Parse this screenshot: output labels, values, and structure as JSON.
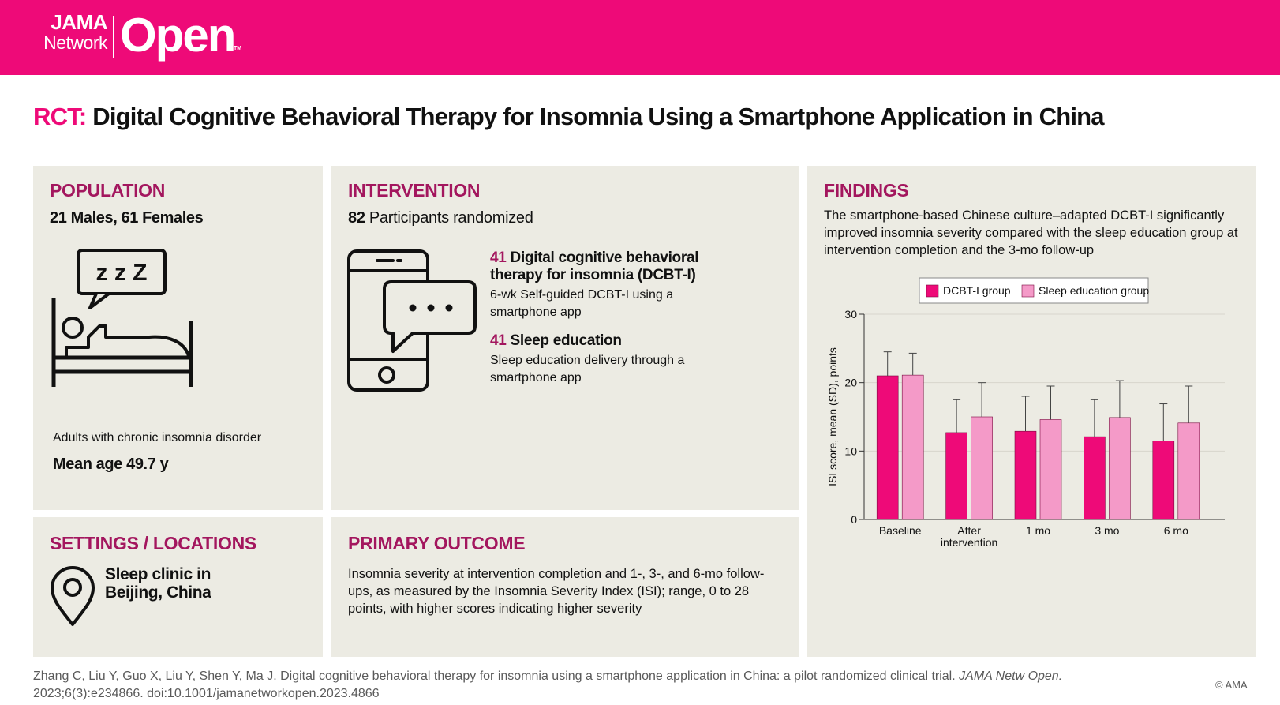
{
  "header": {
    "logo_jama": "JAMA",
    "logo_network": "Network",
    "logo_open": "Open",
    "logo_tm": "TM",
    "brand_color": "#ee0a78"
  },
  "title": {
    "prefix": "RCT:",
    "text": "Digital Cognitive Behavioral Therapy for Insomnia Using a Smartphone Application in China"
  },
  "population": {
    "heading": "POPULATION",
    "sex_line": "21 Males, 61 Females",
    "icon": "bed-sleep-icon",
    "zzz": "z z Z",
    "description": "Adults with chronic insomnia disorder",
    "mean_age": "Mean age 49.7 y"
  },
  "intervention": {
    "heading": "INTERVENTION",
    "randomized_n": "82",
    "randomized_label": "Participants randomized",
    "icon": "smartphone-chat-icon",
    "arm1_n": "41",
    "arm1_title": "Digital cognitive behavioral therapy for insomnia (DCBT-I)",
    "arm1_desc": "6-wk Self-guided DCBT-I using a smartphone app",
    "arm2_n": "41",
    "arm2_title": "Sleep education",
    "arm2_desc": "Sleep education delivery through a smartphone app"
  },
  "settings": {
    "heading": "SETTINGS / LOCATIONS",
    "icon": "location-pin-icon",
    "location_line1": "Sleep clinic in",
    "location_line2": "Beijing, China"
  },
  "primary_outcome": {
    "heading": "PRIMARY OUTCOME",
    "text": "Insomnia severity at intervention completion and 1-, 3-, and 6-mo follow-ups, as measured by the Insomnia Severity Index (ISI); range, 0 to 28 points, with higher scores indicating higher severity"
  },
  "findings": {
    "heading": "FINDINGS",
    "text": "The smartphone-based Chinese culture–adapted DCBT-I significantly improved insomnia severity compared with the sleep education group at intervention completion and the 3-mo follow-up"
  },
  "chart_data": {
    "type": "bar",
    "title": "",
    "xlabel": "",
    "ylabel": "ISI score, mean (SD), points",
    "ylim": [
      0,
      30
    ],
    "yticks": [
      0,
      10,
      20,
      30
    ],
    "grid": true,
    "legend_position": "top-center",
    "categories": [
      "Baseline",
      "After intervention",
      "1 mo",
      "3 mo",
      "6 mo"
    ],
    "series": [
      {
        "name": "DCBT-I group",
        "color": "#ee0a78",
        "values": [
          21.0,
          12.7,
          12.9,
          12.1,
          11.5
        ],
        "sd": [
          3.5,
          4.8,
          5.1,
          5.4,
          5.4
        ]
      },
      {
        "name": "Sleep education group",
        "color": "#f49ac8",
        "values": [
          21.1,
          15.0,
          14.6,
          14.9,
          14.1
        ],
        "sd": [
          3.2,
          5.0,
          4.9,
          5.4,
          5.4
        ]
      }
    ]
  },
  "citation": {
    "line1": "Zhang C, Liu Y, Guo X, Liu Y, Shen Y, Ma J. Digital cognitive behavioral therapy for insomnia using a smartphone application in China: a pilot randomized clinical trial.",
    "journal": "JAMA Netw Open.",
    "line2": "2023;6(3):e234866. doi:10.1001/jamanetworkopen.2023.4866",
    "copyright": "© AMA"
  }
}
